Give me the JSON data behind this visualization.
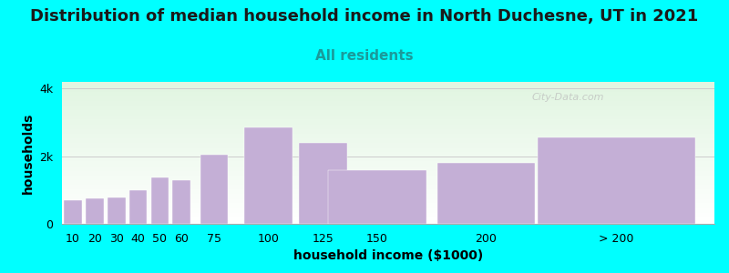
{
  "title": "Distribution of median household income in North Duchesne, UT in 2021",
  "subtitle": "All residents",
  "xlabel": "household income ($1000)",
  "ylabel": "households",
  "background_color": "#00FFFF",
  "bar_color": "#c4afd6",
  "categories": [
    "10",
    "20",
    "30",
    "40",
    "50",
    "60",
    "75",
    "100",
    "125",
    "150",
    "200",
    "> 200"
  ],
  "values": [
    700,
    750,
    780,
    1000,
    1380,
    1280,
    2050,
    2850,
    2400,
    1600,
    1800,
    2550
  ],
  "bar_widths": [
    1,
    1,
    1,
    1,
    1,
    1,
    1,
    1,
    1,
    1,
    1,
    3
  ],
  "ylim": [
    0,
    4200
  ],
  "ytick_vals": [
    0,
    2000,
    4000
  ],
  "ytick_labels": [
    "0",
    "2k",
    "4k"
  ],
  "title_fontsize": 13,
  "subtitle_fontsize": 11,
  "axis_label_fontsize": 10,
  "tick_fontsize": 9,
  "subtitle_color": "#1a9a9a",
  "watermark_text": "City-Data.com"
}
